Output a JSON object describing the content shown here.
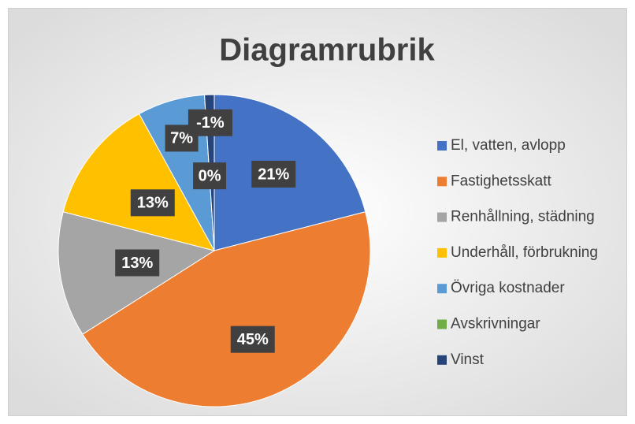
{
  "chart_data": {
    "type": "pie",
    "title": "Diagramrubrik",
    "categories": [
      "El, vatten, avlopp",
      "Fastighetsskatt",
      "Renhållning, städning",
      "Underhåll, förbrukning",
      "Övriga kostnader",
      "Avskrivningar",
      "Vinst"
    ],
    "values": [
      21,
      45,
      13,
      13,
      7,
      0,
      -1
    ],
    "value_labels": [
      "21%",
      "45%",
      "13%",
      "13%",
      "7%",
      "0%",
      "-1%"
    ],
    "colors": [
      "#4472c4",
      "#ed7d31",
      "#a5a5a5",
      "#ffc000",
      "#5b9bd5",
      "#70ad47",
      "#264478"
    ],
    "legend": "right"
  }
}
